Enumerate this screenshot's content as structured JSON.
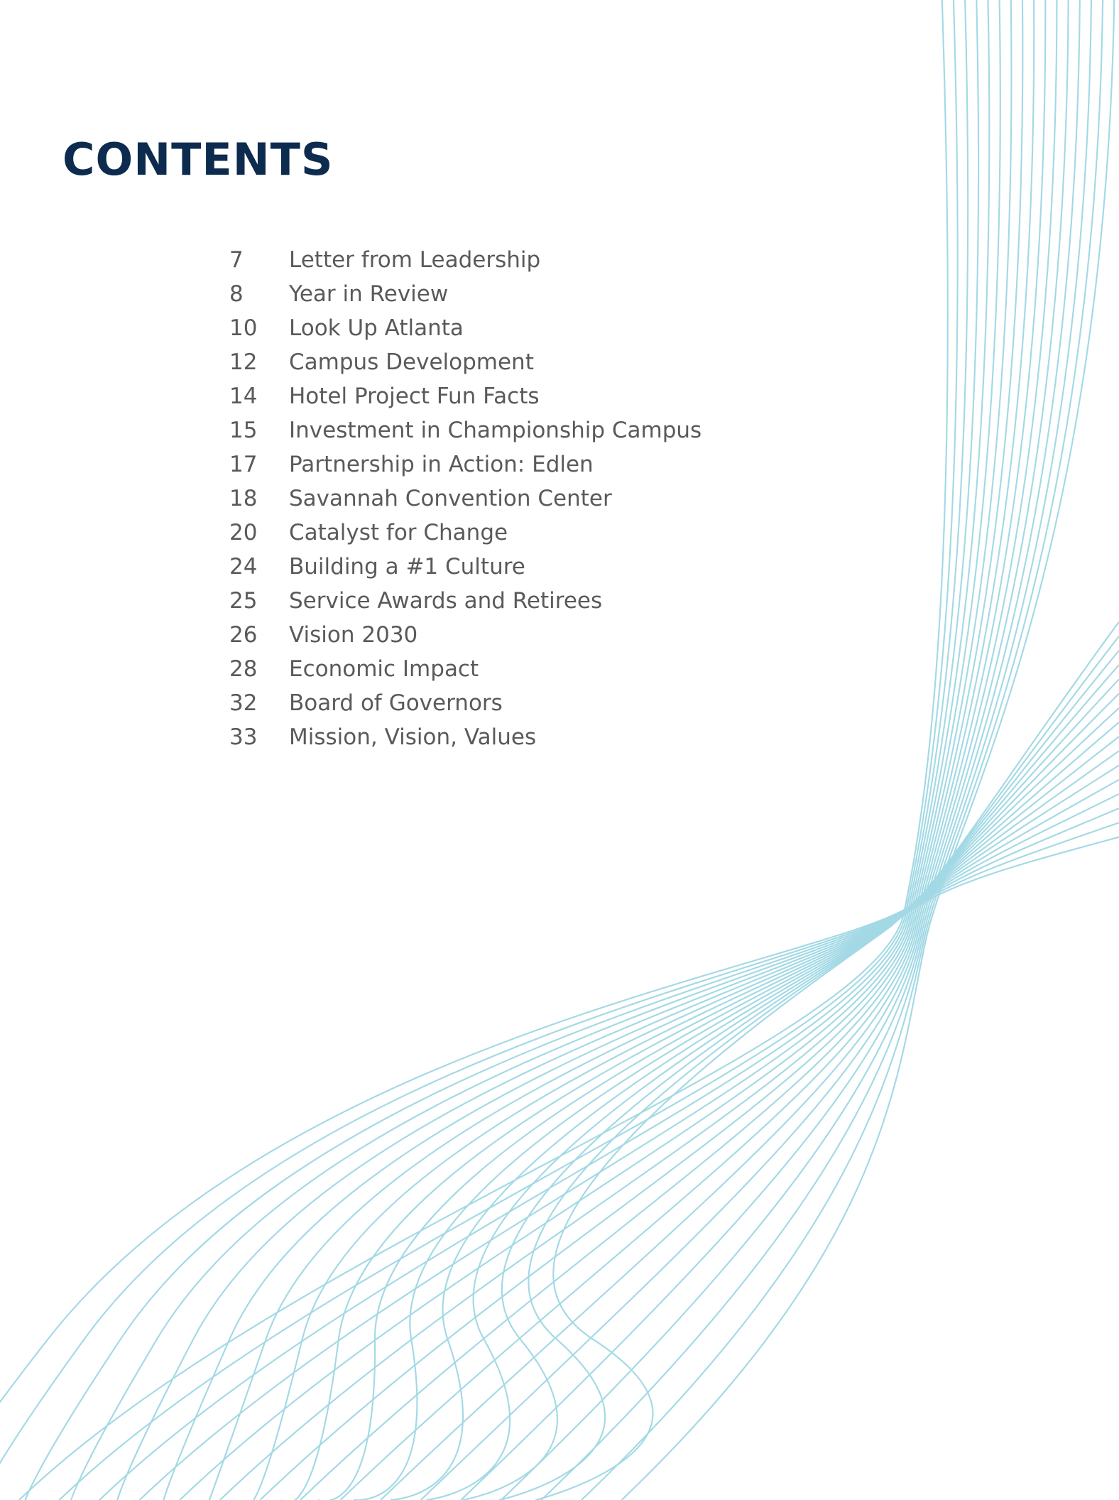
{
  "title": "CONTENTS",
  "entries": [
    {
      "page": 7,
      "label": "Letter from Leadership"
    },
    {
      "page": 8,
      "label": "Year in Review"
    },
    {
      "page": 10,
      "label": "Look Up Atlanta"
    },
    {
      "page": 12,
      "label": "Campus Development"
    },
    {
      "page": 14,
      "label": "Hotel Project Fun Facts"
    },
    {
      "page": 15,
      "label": "Investment in Championship Campus"
    },
    {
      "page": 17,
      "label": "Partnership in Action: Edlen"
    },
    {
      "page": 18,
      "label": "Savannah Convention Center"
    },
    {
      "page": 20,
      "label": "Catalyst for Change"
    },
    {
      "page": 24,
      "label": "Building a #1 Culture"
    },
    {
      "page": 25,
      "label": "Service Awards and Retirees"
    },
    {
      "page": 26,
      "label": "Vision 2030"
    },
    {
      "page": 28,
      "label": "Economic Impact"
    },
    {
      "page": 32,
      "label": "Board of Governors"
    },
    {
      "page": 33,
      "label": "Mission, Vision, Values"
    }
  ]
}
